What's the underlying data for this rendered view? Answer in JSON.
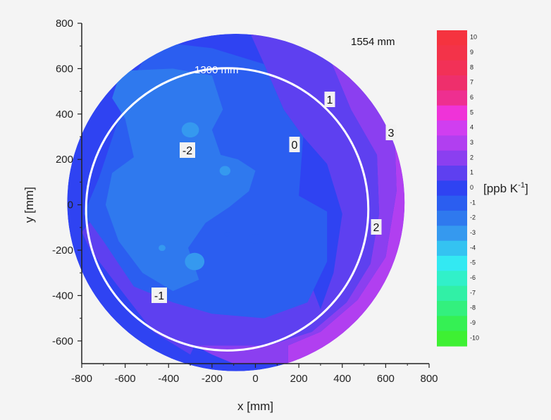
{
  "chart_data": {
    "type": "heatmap",
    "xlabel": "x [mm]",
    "ylabel": "y [mm]",
    "xlim": [
      -800,
      800
    ],
    "ylim": [
      -700,
      800
    ],
    "x_ticks": [
      "-800",
      "-600",
      "-400",
      "-200",
      "0",
      "200",
      "400",
      "600",
      "800"
    ],
    "y_ticks": [
      "800",
      "600",
      "400",
      "200",
      "0",
      "-200",
      "-400",
      "-600"
    ],
    "colorbar": {
      "unit_label": "[ppb K",
      "unit_sup": "-1",
      "unit_close": "]",
      "levels": [
        "10",
        "9",
        "8",
        "7",
        "6",
        "5",
        "4",
        "3",
        "2",
        "1",
        "0",
        "-1",
        "-2",
        "-3",
        "-4",
        "-5",
        "-6",
        "-7",
        "-8",
        "-9",
        "-10"
      ],
      "colors": [
        "#f5333f",
        "#f33349",
        "#f23157",
        "#ee2f6c",
        "#ee2f90",
        "#ef33d8",
        "#d03ef0",
        "#b13ff0",
        "#8b3ff0",
        "#5e40f0",
        "#2f43f2",
        "#2b5ef0",
        "#2f79ee",
        "#3599ef",
        "#34c3f1",
        "#33e9f2",
        "#31f0c9",
        "#31f0a6",
        "#33f07e",
        "#35f054",
        "#3ef033"
      ]
    },
    "annotations": {
      "outer_diameter": "1554 mm",
      "inner_diameter": "1300 mm"
    },
    "contour_labels": [
      "-2",
      "0",
      "1",
      "3",
      "2",
      "-1"
    ],
    "circles": [
      {
        "label": "1554 mm",
        "cx": -90,
        "cy": 10,
        "r": 777
      },
      {
        "label": "1300 mm",
        "cx": -130,
        "cy": -20,
        "r": 650
      }
    ],
    "regions": [
      {
        "level": 3,
        "polygon": [
          [
            560,
            720
          ],
          [
            700,
            400
          ],
          [
            760,
            80
          ],
          [
            760,
            -200
          ],
          [
            660,
            -380
          ],
          [
            500,
            -530
          ],
          [
            310,
            -640
          ],
          [
            150,
            -700
          ],
          [
            150,
            -620
          ],
          [
            300,
            -560
          ],
          [
            470,
            -420
          ],
          [
            600,
            -230
          ],
          [
            650,
            60
          ],
          [
            640,
            360
          ],
          [
            580,
            600
          ]
        ]
      },
      {
        "level": 2,
        "polygon": [
          [
            300,
            790
          ],
          [
            480,
            720
          ],
          [
            580,
            600
          ],
          [
            640,
            360
          ],
          [
            650,
            60
          ],
          [
            600,
            -230
          ],
          [
            470,
            -420
          ],
          [
            300,
            -560
          ],
          [
            150,
            -620
          ],
          [
            150,
            -700
          ],
          [
            -100,
            -700
          ],
          [
            -200,
            -660
          ],
          [
            -280,
            -620
          ],
          [
            60,
            -620
          ],
          [
            260,
            -560
          ],
          [
            420,
            -430
          ],
          [
            530,
            -260
          ],
          [
            570,
            -40
          ],
          [
            560,
            220
          ],
          [
            440,
            420
          ],
          [
            340,
            650
          ]
        ]
      },
      {
        "level": 1,
        "polygon": [
          [
            -40,
            790
          ],
          [
            300,
            790
          ],
          [
            340,
            650
          ],
          [
            440,
            420
          ],
          [
            560,
            220
          ],
          [
            570,
            -40
          ],
          [
            530,
            -260
          ],
          [
            420,
            -430
          ],
          [
            260,
            -560
          ],
          [
            60,
            -620
          ],
          [
            -280,
            -620
          ],
          [
            -300,
            -660
          ],
          [
            -470,
            -560
          ],
          [
            -600,
            -400
          ],
          [
            -760,
            -200
          ],
          [
            -800,
            -120
          ],
          [
            -720,
            -30
          ],
          [
            -560,
            80
          ],
          [
            -430,
            -20
          ],
          [
            -300,
            -120
          ],
          [
            -120,
            -160
          ],
          [
            40,
            -130
          ],
          [
            170,
            -220
          ],
          [
            260,
            -360
          ],
          [
            300,
            -460
          ],
          [
            360,
            -300
          ],
          [
            400,
            -40
          ],
          [
            330,
            180
          ],
          [
            220,
            300
          ],
          [
            130,
            420
          ],
          [
            40,
            620
          ]
        ]
      },
      {
        "level": -1,
        "polygon": [
          [
            -470,
            720
          ],
          [
            -200,
            690
          ],
          [
            40,
            620
          ],
          [
            130,
            420
          ],
          [
            220,
            300
          ],
          [
            200,
            40
          ],
          [
            330,
            -30
          ],
          [
            330,
            -250
          ],
          [
            240,
            -430
          ],
          [
            40,
            -500
          ],
          [
            -200,
            -480
          ],
          [
            -380,
            -430
          ],
          [
            -560,
            -360
          ],
          [
            -700,
            -160
          ],
          [
            -790,
            -40
          ],
          [
            -720,
            120
          ],
          [
            -640,
            350
          ],
          [
            -560,
            560
          ]
        ]
      },
      {
        "level": -2,
        "polygon": [
          [
            -620,
            590
          ],
          [
            -380,
            600
          ],
          [
            -200,
            570
          ],
          [
            -150,
            420
          ],
          [
            -200,
            330
          ],
          [
            -160,
            220
          ],
          [
            -80,
            200
          ],
          [
            0,
            150
          ],
          [
            -30,
            60
          ],
          [
            -120,
            -10
          ],
          [
            -230,
            -80
          ],
          [
            -310,
            -190
          ],
          [
            -260,
            -330
          ],
          [
            -380,
            -380
          ],
          [
            -520,
            -300
          ],
          [
            -630,
            -160
          ],
          [
            -690,
            0
          ],
          [
            -660,
            140
          ],
          [
            -560,
            210
          ],
          [
            -600,
            380
          ],
          [
            -660,
            470
          ]
        ]
      },
      {
        "level": -3,
        "ellipse": [
          -300,
          330,
          40,
          35
        ]
      },
      {
        "level": -3,
        "ellipse": [
          -140,
          150,
          25,
          22
        ]
      },
      {
        "level": -3,
        "ellipse": [
          -280,
          -250,
          45,
          40
        ]
      },
      {
        "level": -3,
        "ellipse": [
          -430,
          -190,
          16,
          14
        ]
      },
      {
        "level": -1,
        "ellipse": [
          0,
          -150,
          35,
          22
        ]
      },
      {
        "level": -1,
        "ellipse": [
          -130,
          -130,
          12,
          10
        ]
      }
    ]
  }
}
